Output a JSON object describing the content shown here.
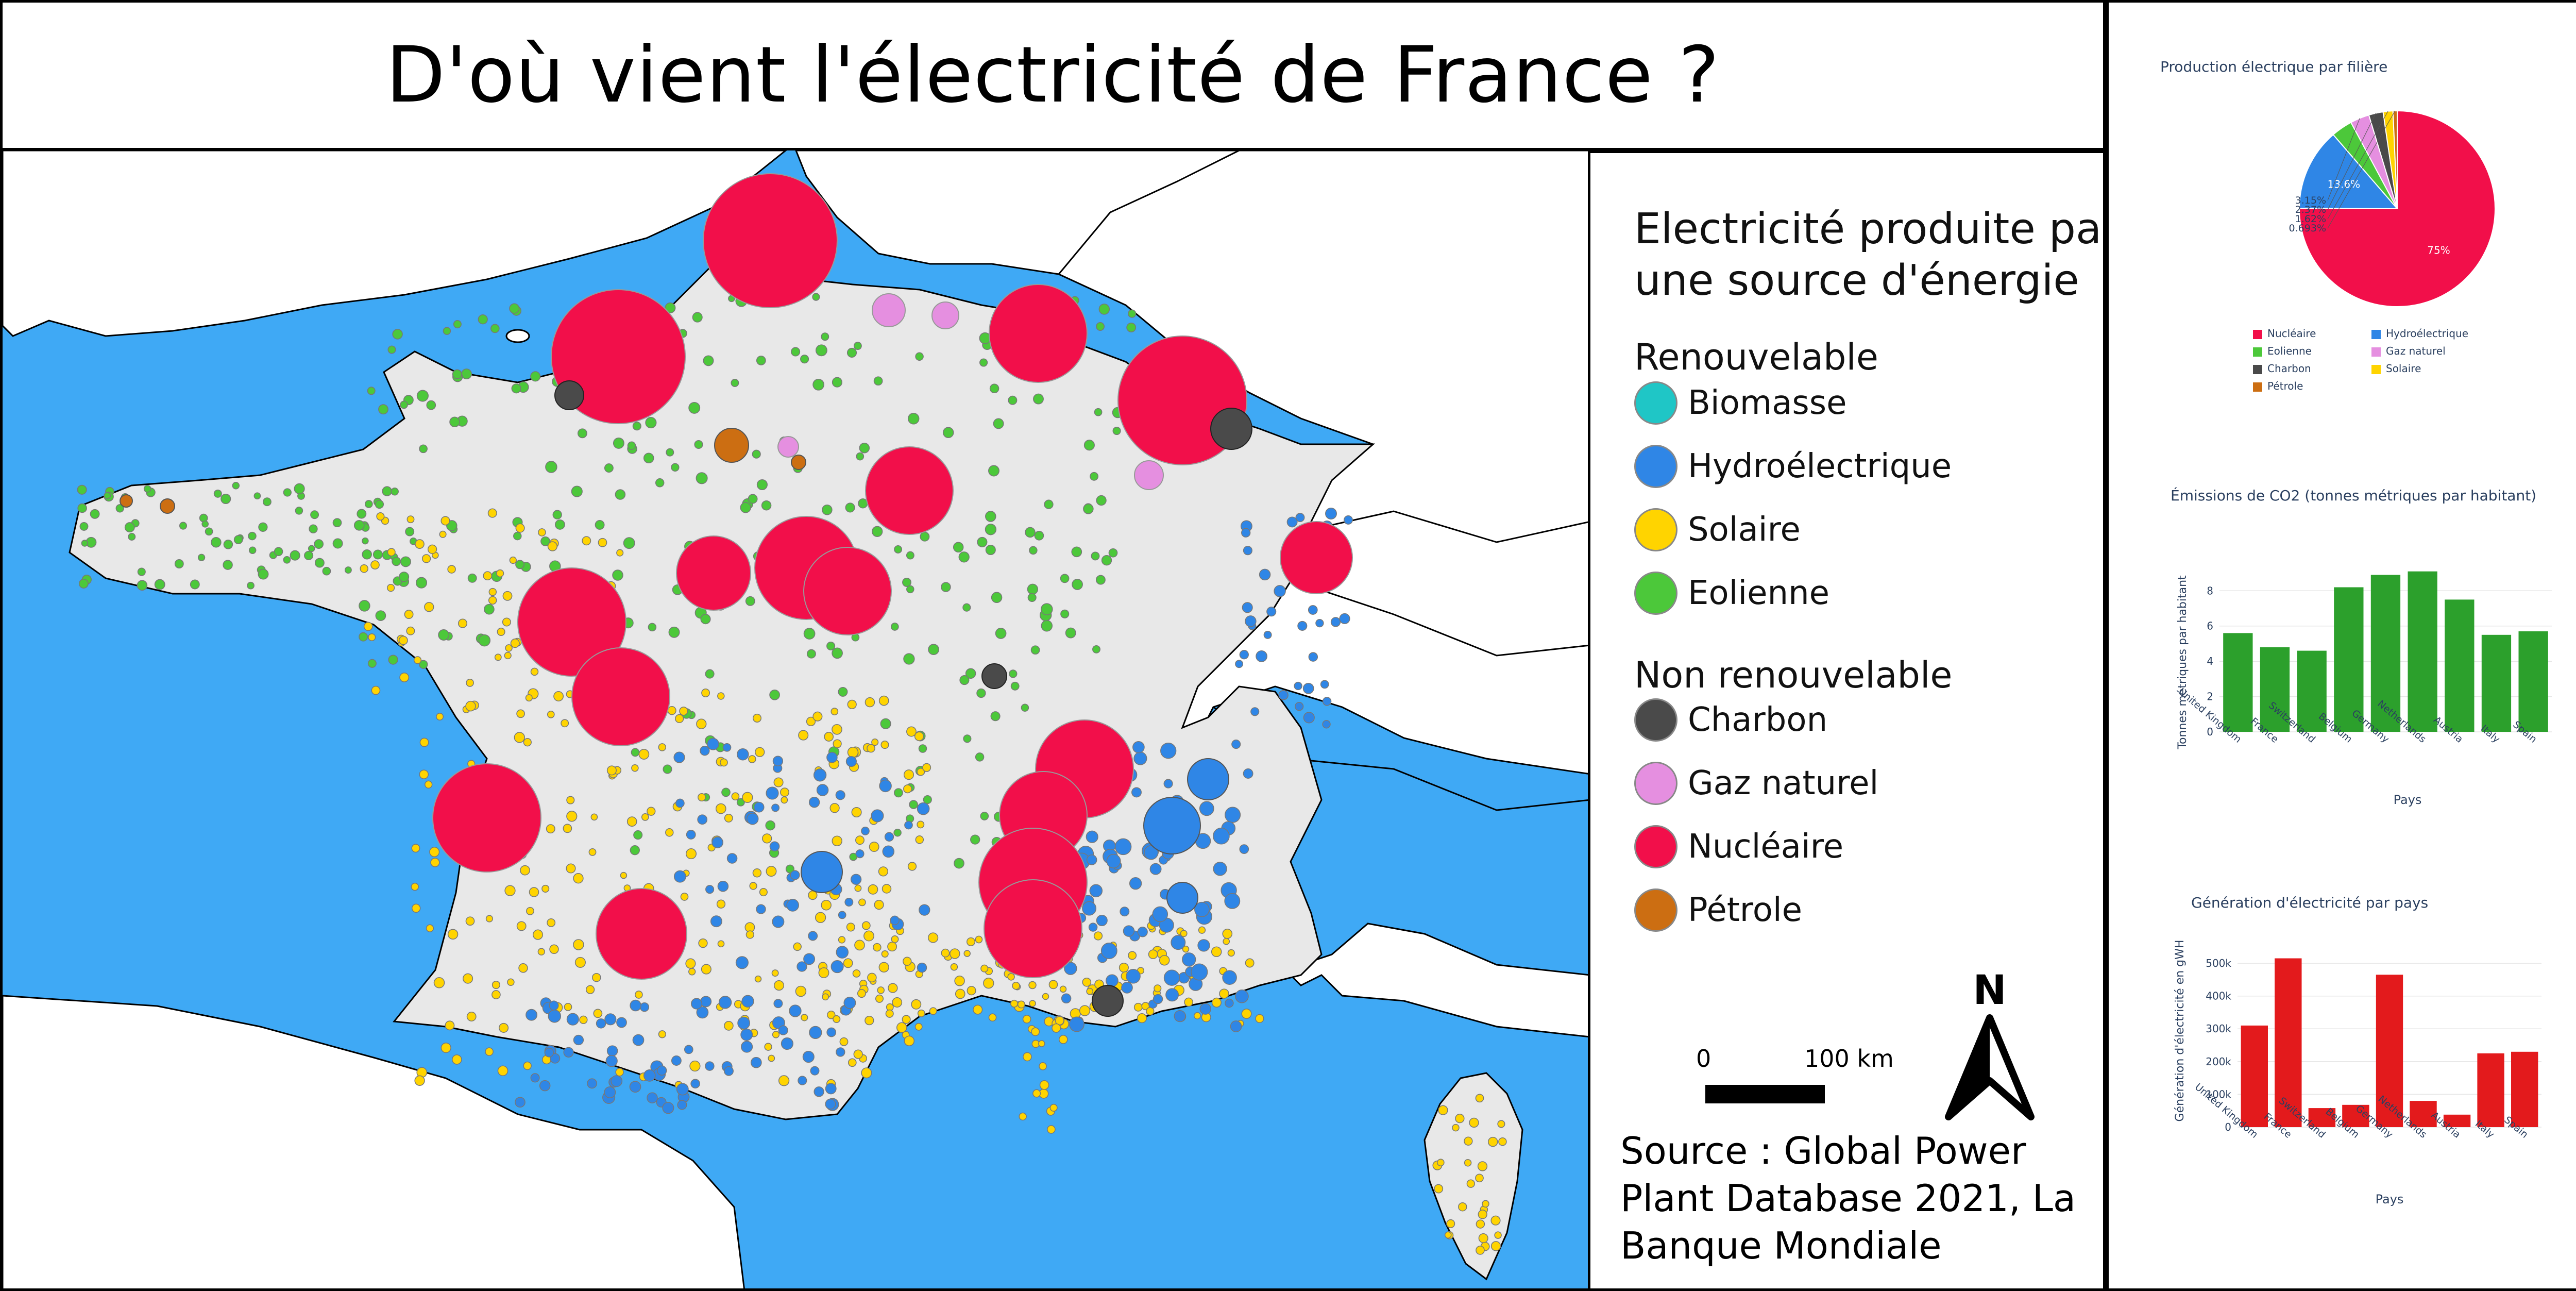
{
  "title": "D'où vient l'électricité de France ?",
  "colors": {
    "sea": "#3fa9f5",
    "france": "#e8e8e8",
    "nuclear": "#f20f4a",
    "wind": "#4cc83a",
    "hydro": "#2f86e6",
    "solar": "#ffd400",
    "coal": "#4a4a4a",
    "gas": "#e58fe0",
    "oil": "#cc6e12",
    "biomass": "#1fc6c6",
    "co2_bar": "#2ca02c",
    "gen_bar": "#e31a1c"
  },
  "legend": {
    "title_line1": "Electricité produite par",
    "title_line2": "une source d'énergie",
    "renewable_label": "Renouvelable",
    "renewable_items": [
      {
        "label": "Biomasse",
        "color": "#1fc6c6"
      },
      {
        "label": "Hydroélectrique",
        "color": "#2f86e6"
      },
      {
        "label": "Solaire",
        "color": "#ffd400"
      },
      {
        "label": "Eolienne",
        "color": "#4cc83a"
      }
    ],
    "nonrenewable_label": "Non renouvelable",
    "nonrenewable_items": [
      {
        "label": "Charbon",
        "color": "#4a4a4a"
      },
      {
        "label": "Gaz naturel",
        "color": "#e58fe0"
      },
      {
        "label": "Nucléaire",
        "color": "#f20f4a"
      },
      {
        "label": "Pétrole",
        "color": "#cc6e12"
      }
    ],
    "scale_start": "0",
    "scale_end": "100 km",
    "north_label": "N",
    "source_text": "Source : Global Power Plant Database 2021, La Banque Mondiale"
  },
  "charts": {
    "pie": {
      "title": "Production électrique par filière",
      "legend": [
        {
          "label": "Nucléaire",
          "color": "#f20f4a"
        },
        {
          "label": "Hydroélectrique",
          "color": "#2f86e6"
        },
        {
          "label": "Eolienne",
          "color": "#4cc83a"
        },
        {
          "label": "Gaz naturel",
          "color": "#e58fe0"
        },
        {
          "label": "Charbon",
          "color": "#4a4a4a"
        },
        {
          "label": "Solaire",
          "color": "#ffd400"
        },
        {
          "label": "Pétrole",
          "color": "#cc6e12"
        }
      ]
    },
    "co2": {
      "title": "Émissions de CO2 (tonnes métriques par habitant)",
      "xlabel": "Pays",
      "ylabel": "Tonnes métriques par habitant"
    },
    "gen": {
      "title": "Génération d'électricité par pays",
      "xlabel": "Pays",
      "ylabel": "Génération d'électricité en gWH"
    }
  },
  "chart_data": [
    {
      "type": "pie",
      "title": "Production électrique par filière",
      "labels": [
        "Nucléaire",
        "Hydroélectrique",
        "Eolienne",
        "Gaz naturel",
        "Charbon",
        "Solaire",
        "Pétrole"
      ],
      "values": [
        75,
        13.6,
        3.5,
        3.15,
        2.37,
        1.62,
        0.693
      ],
      "slice_labels": [
        "75%",
        "13.6%",
        "",
        "3.15%",
        "2.37%",
        "1.62%",
        "0.693%"
      ]
    },
    {
      "type": "bar",
      "title": "Émissions de CO2 (tonnes métriques par habitant)",
      "categories": [
        "United Kingdom",
        "France",
        "Switzerland",
        "Belgium",
        "Germany",
        "Netherlands",
        "Austria",
        "Italy",
        "Spain"
      ],
      "values": [
        5.6,
        4.8,
        4.6,
        8.2,
        8.9,
        9.1,
        7.5,
        5.5,
        5.7
      ],
      "xlabel": "Pays",
      "ylabel": "Tonnes métriques par habitant",
      "ylim": [
        0,
        9.5
      ],
      "yticks": [
        "0",
        "2",
        "4",
        "6",
        "8"
      ]
    },
    {
      "type": "bar",
      "title": "Génération d'électricité par pays",
      "categories": [
        "United Kingdom",
        "France",
        "Switzerland",
        "Belgium",
        "Germany",
        "Netherlands",
        "Austria",
        "Italy",
        "Spain"
      ],
      "values": [
        310000,
        515000,
        58000,
        68000,
        465000,
        80000,
        38000,
        225000,
        230000
      ],
      "xlabel": "Pays",
      "ylabel": "Génération d'électricité en gWH",
      "ylim": [
        0,
        530000
      ],
      "yticks": [
        "0",
        "100k",
        "200k",
        "300k",
        "400k",
        "500k"
      ]
    }
  ]
}
